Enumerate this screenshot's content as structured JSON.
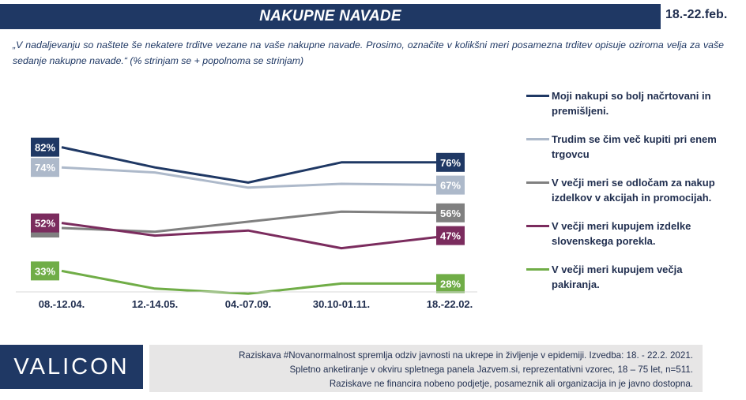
{
  "header": {
    "title": "NAKUPNE NAVADE",
    "date": "18.-22.feb."
  },
  "subtitle": "„V nadaljevanju so naštete še nekatere trditve vezane na vaše nakupne navade. Prosimo, označite v kolikšni meri posamezna trditev opisuje oziroma velja za vaše sedanje nakupne navade.“ (% strinjam se + popolnoma se strinjam)",
  "chart_data": {
    "type": "line",
    "categories": [
      "08.-12.04.",
      "12.-14.05.",
      "04.-07.09.",
      "30.10-01.11.",
      "18.-22.02."
    ],
    "ylim": [
      20,
      95
    ],
    "grid": false,
    "legend_position": "right",
    "series": [
      {
        "name": "Moji nakupi so bolj načrtovani in premišljeni.",
        "color": "#1f3864",
        "values": [
          82,
          74,
          68,
          76,
          76
        ],
        "labels": [
          "82%",
          null,
          null,
          null,
          "76%"
        ]
      },
      {
        "name": "Trudim se čim več kupiti pri enem trgovcu",
        "color": "#adb9ca",
        "values": [
          74,
          72,
          66,
          67.5,
          67
        ],
        "labels": [
          "74%",
          null,
          null,
          null,
          "67%"
        ]
      },
      {
        "name": "V večji meri se odločam za nakup izdelkov v akcijah in promocijah.",
        "color": "#808080",
        "values": [
          50,
          48.5,
          52.5,
          56.5,
          56
        ],
        "labels": [
          "50%",
          null,
          null,
          null,
          "56%"
        ]
      },
      {
        "name": "V večji meri kupujem izdelke slovenskega porekla.",
        "color": "#7b2c5e",
        "values": [
          52,
          47,
          49,
          42,
          47
        ],
        "labels": [
          "52%",
          null,
          null,
          null,
          "47%"
        ]
      },
      {
        "name": "V večji meri kupujem večja pakiranja.",
        "color": "#70ad47",
        "values": [
          33,
          26,
          24,
          28,
          28
        ],
        "labels": [
          "33%",
          null,
          null,
          null,
          "28%"
        ]
      }
    ]
  },
  "footer": {
    "logo": "VALICON",
    "note_line1": "Raziskava #Novanormalnost spremlja odziv javnosti na ukrepe in življenje v epidemiji. Izvedba: 18. - 22.2. 2021.",
    "note_line2": "Spletno anketiranje v okviru spletnega panela Jazvem.si, reprezentativni vzorec, 18 – 75 let, n=511.",
    "note_line3": "Raziskave ne financira nobeno podjetje, posameznik ali organizacija in je javno dostopna."
  }
}
